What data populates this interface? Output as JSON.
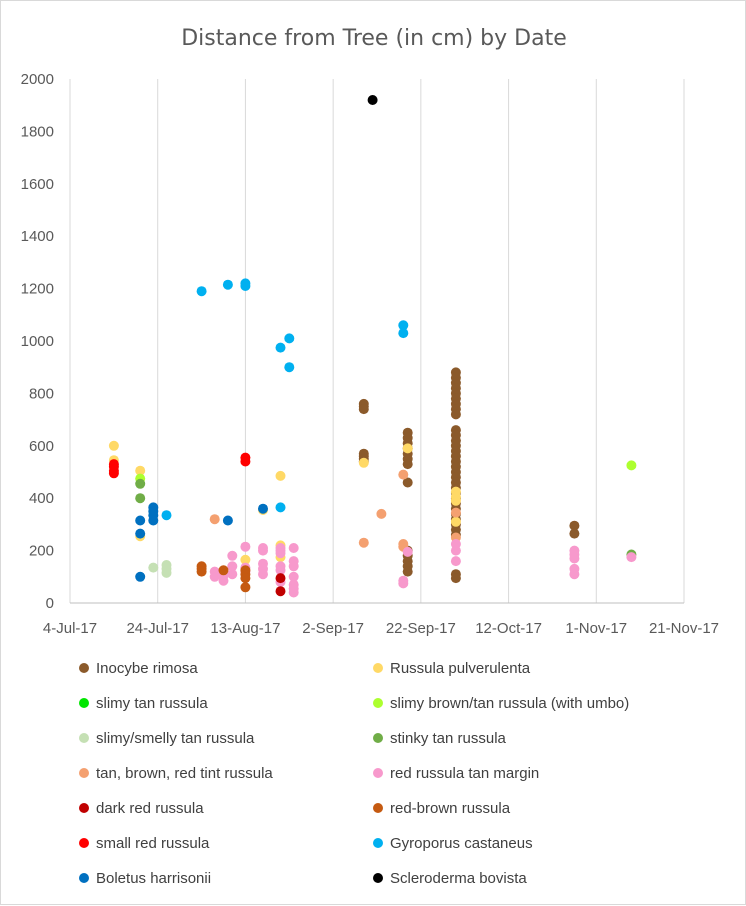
{
  "chart_data": {
    "type": "scatter",
    "title": "Distance from Tree (in cm) by Date",
    "xlabel": "",
    "ylabel": "",
    "x_tick_labels": [
      "4-Jul-17",
      "24-Jul-17",
      "13-Aug-17",
      "2-Sep-17",
      "22-Sep-17",
      "12-Oct-17",
      "1-Nov-17",
      "21-Nov-17"
    ],
    "x_range": [
      "2017-07-04",
      "2017-11-21"
    ],
    "y_tick_labels": [
      "0",
      "200",
      "400",
      "600",
      "800",
      "1000",
      "1200",
      "1400",
      "1600",
      "1800",
      "2000"
    ],
    "ylim": [
      0,
      2000
    ],
    "grid": "vertical",
    "legend_position": "bottom",
    "series": [
      {
        "name": "Inocybe rimosa",
        "color": "#8B5A2B",
        "points": [
          [
            "2017-09-09",
            760
          ],
          [
            "2017-09-09",
            750
          ],
          [
            "2017-09-09",
            740
          ],
          [
            "2017-09-09",
            570
          ],
          [
            "2017-09-09",
            560
          ],
          [
            "2017-09-09",
            550
          ],
          [
            "2017-09-09",
            540
          ],
          [
            "2017-09-19",
            650
          ],
          [
            "2017-09-19",
            630
          ],
          [
            "2017-09-19",
            610
          ],
          [
            "2017-09-19",
            590
          ],
          [
            "2017-09-19",
            570
          ],
          [
            "2017-09-19",
            550
          ],
          [
            "2017-09-19",
            530
          ],
          [
            "2017-09-19",
            460
          ],
          [
            "2017-09-19",
            200
          ],
          [
            "2017-09-19",
            180
          ],
          [
            "2017-09-19",
            160
          ],
          [
            "2017-09-19",
            140
          ],
          [
            "2017-09-19",
            120
          ],
          [
            "2017-09-30",
            880
          ],
          [
            "2017-09-30",
            860
          ],
          [
            "2017-09-30",
            840
          ],
          [
            "2017-09-30",
            820
          ],
          [
            "2017-09-30",
            800
          ],
          [
            "2017-09-30",
            780
          ],
          [
            "2017-09-30",
            760
          ],
          [
            "2017-09-30",
            740
          ],
          [
            "2017-09-30",
            720
          ],
          [
            "2017-09-30",
            660
          ],
          [
            "2017-09-30",
            640
          ],
          [
            "2017-09-30",
            620
          ],
          [
            "2017-09-30",
            600
          ],
          [
            "2017-09-30",
            580
          ],
          [
            "2017-09-30",
            560
          ],
          [
            "2017-09-30",
            540
          ],
          [
            "2017-09-30",
            520
          ],
          [
            "2017-09-30",
            500
          ],
          [
            "2017-09-30",
            480
          ],
          [
            "2017-09-30",
            460
          ],
          [
            "2017-09-30",
            440
          ],
          [
            "2017-09-30",
            420
          ],
          [
            "2017-09-30",
            400
          ],
          [
            "2017-09-30",
            380
          ],
          [
            "2017-09-30",
            360
          ],
          [
            "2017-09-30",
            340
          ],
          [
            "2017-09-30",
            320
          ],
          [
            "2017-09-30",
            300
          ],
          [
            "2017-09-30",
            280
          ],
          [
            "2017-09-30",
            260
          ],
          [
            "2017-09-30",
            110
          ],
          [
            "2017-09-30",
            95
          ],
          [
            "2017-10-27",
            295
          ],
          [
            "2017-10-27",
            265
          ]
        ]
      },
      {
        "name": "Russula pulverulenta",
        "color": "#FFD966",
        "points": [
          [
            "2017-07-14",
            600
          ],
          [
            "2017-07-14",
            545
          ],
          [
            "2017-07-20",
            505
          ],
          [
            "2017-07-20",
            255
          ],
          [
            "2017-08-13",
            165
          ],
          [
            "2017-08-17",
            355
          ],
          [
            "2017-08-21",
            485
          ],
          [
            "2017-08-21",
            220
          ],
          [
            "2017-08-21",
            175
          ],
          [
            "2017-09-09",
            535
          ],
          [
            "2017-09-19",
            590
          ],
          [
            "2017-09-30",
            425
          ],
          [
            "2017-09-30",
            405
          ],
          [
            "2017-09-30",
            390
          ],
          [
            "2017-09-30",
            310
          ]
        ]
      },
      {
        "name": "slimy tan russula",
        "color": "#00E600",
        "points": []
      },
      {
        "name": "slimy brown/tan russula (with umbo)",
        "color": "#ADFF2F",
        "points": [
          [
            "2017-07-20",
            475
          ],
          [
            "2017-11-09",
            525
          ]
        ]
      },
      {
        "name": "slimy/smelly tan russula",
        "color": "#C5E0B4",
        "points": [
          [
            "2017-07-23",
            135
          ],
          [
            "2017-07-26",
            145
          ],
          [
            "2017-07-26",
            130
          ],
          [
            "2017-07-26",
            115
          ]
        ]
      },
      {
        "name": "stinky tan russula",
        "color": "#70AD47",
        "points": [
          [
            "2017-07-20",
            455
          ],
          [
            "2017-07-20",
            400
          ],
          [
            "2017-11-09",
            185
          ]
        ]
      },
      {
        "name": "tan, brown, red tint russula",
        "color": "#F4A070",
        "points": [
          [
            "2017-08-06",
            320
          ],
          [
            "2017-09-09",
            230
          ],
          [
            "2017-09-13",
            340
          ],
          [
            "2017-09-18",
            490
          ],
          [
            "2017-09-18",
            225
          ],
          [
            "2017-09-18",
            215
          ],
          [
            "2017-09-30",
            345
          ],
          [
            "2017-09-30",
            250
          ]
        ]
      },
      {
        "name": "red russula tan margin",
        "color": "#F799CC",
        "points": [
          [
            "2017-08-06",
            120
          ],
          [
            "2017-08-06",
            100
          ],
          [
            "2017-08-08",
            85
          ],
          [
            "2017-08-08",
            105
          ],
          [
            "2017-08-10",
            180
          ],
          [
            "2017-08-10",
            140
          ],
          [
            "2017-08-10",
            110
          ],
          [
            "2017-08-13",
            215
          ],
          [
            "2017-08-13",
            135
          ],
          [
            "2017-08-13",
            120
          ],
          [
            "2017-08-17",
            210
          ],
          [
            "2017-08-17",
            200
          ],
          [
            "2017-08-17",
            150
          ],
          [
            "2017-08-17",
            130
          ],
          [
            "2017-08-17",
            110
          ],
          [
            "2017-08-21",
            210
          ],
          [
            "2017-08-21",
            200
          ],
          [
            "2017-08-21",
            190
          ],
          [
            "2017-08-21",
            140
          ],
          [
            "2017-08-21",
            125
          ],
          [
            "2017-08-21",
            80
          ],
          [
            "2017-08-24",
            210
          ],
          [
            "2017-08-24",
            160
          ],
          [
            "2017-08-24",
            140
          ],
          [
            "2017-08-24",
            100
          ],
          [
            "2017-08-24",
            70
          ],
          [
            "2017-08-24",
            55
          ],
          [
            "2017-08-24",
            40
          ],
          [
            "2017-09-18",
            85
          ],
          [
            "2017-09-18",
            75
          ],
          [
            "2017-09-19",
            195
          ],
          [
            "2017-09-30",
            225
          ],
          [
            "2017-09-30",
            200
          ],
          [
            "2017-09-30",
            160
          ],
          [
            "2017-10-27",
            200
          ],
          [
            "2017-10-27",
            185
          ],
          [
            "2017-10-27",
            170
          ],
          [
            "2017-10-27",
            130
          ],
          [
            "2017-10-27",
            110
          ],
          [
            "2017-11-09",
            175
          ]
        ]
      },
      {
        "name": "dark red russula",
        "color": "#C00000",
        "points": [
          [
            "2017-08-21",
            95
          ],
          [
            "2017-08-21",
            45
          ]
        ]
      },
      {
        "name": "red-brown russula",
        "color": "#C55A11",
        "points": [
          [
            "2017-08-03",
            140
          ],
          [
            "2017-08-03",
            130
          ],
          [
            "2017-08-03",
            120
          ],
          [
            "2017-08-08",
            125
          ],
          [
            "2017-08-13",
            125
          ],
          [
            "2017-08-13",
            110
          ],
          [
            "2017-08-13",
            95
          ],
          [
            "2017-08-13",
            60
          ]
        ]
      },
      {
        "name": "small red russula",
        "color": "#FF0000",
        "points": [
          [
            "2017-07-14",
            530
          ],
          [
            "2017-07-14",
            520
          ],
          [
            "2017-07-14",
            505
          ],
          [
            "2017-07-14",
            495
          ],
          [
            "2017-08-13",
            555
          ],
          [
            "2017-08-13",
            540
          ]
        ]
      },
      {
        "name": "Gyroporus castaneus",
        "color": "#00B0F0",
        "points": [
          [
            "2017-08-03",
            1190
          ],
          [
            "2017-08-09",
            1215
          ],
          [
            "2017-08-13",
            1220
          ],
          [
            "2017-08-13",
            1210
          ],
          [
            "2017-08-21",
            975
          ],
          [
            "2017-08-21",
            365
          ],
          [
            "2017-08-23",
            1010
          ],
          [
            "2017-08-23",
            900
          ],
          [
            "2017-07-26",
            335
          ],
          [
            "2017-09-18",
            1060
          ],
          [
            "2017-09-18",
            1030
          ]
        ]
      },
      {
        "name": "Boletus harrisonii",
        "color": "#0070C0",
        "points": [
          [
            "2017-07-20",
            315
          ],
          [
            "2017-07-20",
            265
          ],
          [
            "2017-07-20",
            100
          ],
          [
            "2017-07-23",
            365
          ],
          [
            "2017-07-23",
            350
          ],
          [
            "2017-07-23",
            335
          ],
          [
            "2017-07-23",
            315
          ],
          [
            "2017-08-09",
            315
          ],
          [
            "2017-08-17",
            360
          ]
        ]
      },
      {
        "name": "Scleroderma bovista",
        "color": "#000000",
        "points": [
          [
            "2017-09-11",
            1920
          ]
        ]
      }
    ]
  }
}
